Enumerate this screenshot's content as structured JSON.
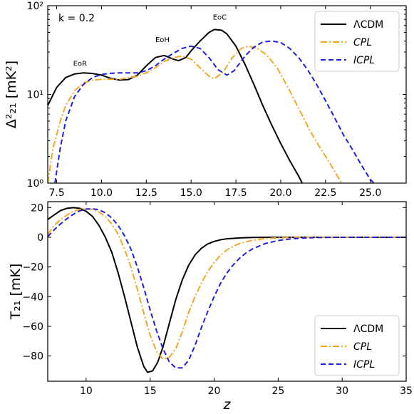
{
  "chart_data": [
    {
      "type": "line",
      "yscale": "log",
      "xlim": [
        7,
        27
      ],
      "ylim": [
        1,
        100
      ],
      "ylabel": "Δ²₂₁ [mK²]",
      "xticks": [
        7.5,
        10.0,
        12.5,
        15.0,
        17.5,
        20.0,
        22.5,
        25.0
      ],
      "xtick_labels": [
        "7.5",
        "10.0",
        "12.5",
        "15.0",
        "17.5",
        "20.0",
        "22.5",
        "25.0"
      ],
      "yticks": [
        1,
        10,
        100
      ],
      "ytick_labels": [
        "10⁰",
        "10¹",
        "10²"
      ],
      "k_label": "k = 0.2",
      "annotations": [
        {
          "text": "EoR",
          "x": 8.8,
          "y": 21
        },
        {
          "text": "EoH",
          "x": 13.4,
          "y": 39
        },
        {
          "text": "EoC",
          "x": 16.6,
          "y": 70
        }
      ],
      "legend": {
        "position": "top-right",
        "entries": [
          "ΛCDM",
          "CPL",
          "ICPL"
        ]
      },
      "series": [
        {
          "name": "ΛCDM",
          "color": "#000000",
          "dash": "solid",
          "points": [
            [
              7.0,
              7.5
            ],
            [
              7.5,
              12
            ],
            [
              8.0,
              15.5
            ],
            [
              8.5,
              17
            ],
            [
              9.0,
              17.5
            ],
            [
              9.5,
              17.2
            ],
            [
              10.0,
              16.5
            ],
            [
              10.5,
              15.2
            ],
            [
              11.0,
              14.5
            ],
            [
              11.5,
              14.7
            ],
            [
              12.0,
              16.5
            ],
            [
              12.5,
              21
            ],
            [
              13.0,
              26
            ],
            [
              13.5,
              27.5
            ],
            [
              14.0,
              25
            ],
            [
              14.3,
              24
            ],
            [
              14.7,
              26
            ],
            [
              15.0,
              31
            ],
            [
              15.5,
              40
            ],
            [
              16.0,
              50
            ],
            [
              16.3,
              54
            ],
            [
              16.7,
              53
            ],
            [
              17.0,
              48
            ],
            [
              17.5,
              35
            ],
            [
              18.0,
              22
            ],
            [
              18.5,
              13
            ],
            [
              19.0,
              7.5
            ],
            [
              19.5,
              4.5
            ],
            [
              20.0,
              2.8
            ],
            [
              20.5,
              1.8
            ],
            [
              21.0,
              1.2
            ],
            [
              21.2,
              1.0
            ]
          ]
        },
        {
          "name": "CPL",
          "color": "#f5a623",
          "dash": "dashdot",
          "points": [
            [
              7.0,
              1.0
            ],
            [
              7.3,
              2.5
            ],
            [
              7.7,
              5
            ],
            [
              8.0,
              7.5
            ],
            [
              8.5,
              11
            ],
            [
              9.0,
              13.5
            ],
            [
              9.5,
              14.5
            ],
            [
              10.0,
              14.8
            ],
            [
              10.5,
              14.8
            ],
            [
              11.0,
              14.8
            ],
            [
              11.5,
              15.5
            ],
            [
              12.0,
              16
            ],
            [
              12.5,
              17.5
            ],
            [
              13.0,
              20
            ],
            [
              13.5,
              23.5
            ],
            [
              14.0,
              26
            ],
            [
              14.5,
              27
            ],
            [
              15.0,
              25
            ],
            [
              15.5,
              20
            ],
            [
              16.0,
              16
            ],
            [
              16.3,
              15
            ],
            [
              16.8,
              18
            ],
            [
              17.3,
              26
            ],
            [
              17.8,
              33
            ],
            [
              18.2,
              35
            ],
            [
              18.7,
              33
            ],
            [
              19.2,
              28
            ],
            [
              19.8,
              20
            ],
            [
              20.4,
              12
            ],
            [
              21.0,
              7
            ],
            [
              21.6,
              4
            ],
            [
              22.2,
              2.5
            ],
            [
              22.8,
              1.6
            ],
            [
              23.4,
              1.0
            ]
          ]
        },
        {
          "name": "ICPL",
          "color": "#1f1fe0",
          "dash": "dashed",
          "points": [
            [
              7.4,
              1.0
            ],
            [
              7.7,
              2.5
            ],
            [
              8.0,
              5
            ],
            [
              8.5,
              9.5
            ],
            [
              9.0,
              13
            ],
            [
              9.5,
              15.5
            ],
            [
              10.0,
              16.8
            ],
            [
              10.5,
              17.3
            ],
            [
              11.0,
              17.5
            ],
            [
              11.5,
              17.5
            ],
            [
              12.0,
              17.5
            ],
            [
              12.5,
              18.5
            ],
            [
              13.0,
              21
            ],
            [
              13.5,
              25
            ],
            [
              14.0,
              29
            ],
            [
              14.5,
              33
            ],
            [
              15.0,
              35
            ],
            [
              15.5,
              33
            ],
            [
              16.0,
              26
            ],
            [
              16.5,
              19
            ],
            [
              17.0,
              16.5
            ],
            [
              17.4,
              18.5
            ],
            [
              18.0,
              27
            ],
            [
              18.5,
              34
            ],
            [
              19.0,
              39
            ],
            [
              19.5,
              40
            ],
            [
              20.0,
              38.5
            ],
            [
              20.5,
              33
            ],
            [
              21.0,
              26
            ],
            [
              21.5,
              19
            ],
            [
              22.0,
              13
            ],
            [
              22.5,
              8.5
            ],
            [
              23.0,
              5.5
            ],
            [
              23.5,
              3.5
            ],
            [
              24.0,
              2.4
            ],
            [
              24.5,
              1.6
            ],
            [
              25.0,
              1.1
            ],
            [
              25.2,
              1.0
            ]
          ]
        }
      ]
    },
    {
      "type": "line",
      "xlim": [
        7,
        35
      ],
      "ylim": [
        -97,
        24
      ],
      "xlabel": "z",
      "ylabel": "T₂₁ [mK]",
      "xticks": [
        10,
        15,
        20,
        25,
        30,
        35
      ],
      "xtick_labels": [
        "10",
        "15",
        "20",
        "25",
        "30",
        "35"
      ],
      "yticks": [
        20,
        0,
        -20,
        -40,
        -60,
        -80
      ],
      "ytick_labels": [
        "20",
        "0",
        "−20",
        "−40",
        "−60",
        "−80"
      ],
      "legend": {
        "position": "lower-right",
        "entries": [
          "ΛCDM",
          "CPL",
          "ICPL"
        ]
      },
      "series": [
        {
          "name": "ΛCDM",
          "color": "#000000",
          "dash": "solid",
          "points": [
            [
              7.0,
              12
            ],
            [
              7.5,
              15
            ],
            [
              8.0,
              18
            ],
            [
              8.5,
              19.5
            ],
            [
              9.0,
              20
            ],
            [
              9.5,
              19.5
            ],
            [
              10.0,
              17.5
            ],
            [
              10.5,
              14
            ],
            [
              11.0,
              8
            ],
            [
              11.5,
              0
            ],
            [
              12.0,
              -10
            ],
            [
              12.5,
              -24
            ],
            [
              13.0,
              -40
            ],
            [
              13.5,
              -57
            ],
            [
              14.0,
              -74
            ],
            [
              14.5,
              -87
            ],
            [
              14.8,
              -91
            ],
            [
              15.2,
              -90
            ],
            [
              15.6,
              -84
            ],
            [
              16.0,
              -74
            ],
            [
              16.5,
              -58
            ],
            [
              17.0,
              -42
            ],
            [
              17.5,
              -29
            ],
            [
              18.0,
              -19
            ],
            [
              18.5,
              -12
            ],
            [
              19.0,
              -7.5
            ],
            [
              19.5,
              -4.5
            ],
            [
              20.0,
              -2.8
            ],
            [
              20.5,
              -1.7
            ],
            [
              21.0,
              -1.0
            ],
            [
              22.0,
              -0.4
            ],
            [
              23.0,
              -0.15
            ],
            [
              25.0,
              0
            ],
            [
              30.0,
              0
            ],
            [
              35.0,
              0
            ]
          ]
        },
        {
          "name": "CPL",
          "color": "#f5a623",
          "dash": "dashdot",
          "points": [
            [
              7.0,
              2
            ],
            [
              7.5,
              8
            ],
            [
              8.0,
              12
            ],
            [
              8.5,
              15
            ],
            [
              9.0,
              17.5
            ],
            [
              9.5,
              18.8
            ],
            [
              10.0,
              19.2
            ],
            [
              10.5,
              18.8
            ],
            [
              11.0,
              17
            ],
            [
              11.5,
              14
            ],
            [
              12.0,
              9
            ],
            [
              12.5,
              2
            ],
            [
              13.0,
              -8
            ],
            [
              13.5,
              -20
            ],
            [
              14.0,
              -35
            ],
            [
              14.5,
              -51
            ],
            [
              15.0,
              -66
            ],
            [
              15.5,
              -77
            ],
            [
              16.0,
              -82
            ],
            [
              16.5,
              -81
            ],
            [
              17.0,
              -75
            ],
            [
              17.5,
              -64
            ],
            [
              18.0,
              -51
            ],
            [
              18.5,
              -40
            ],
            [
              19.0,
              -31
            ],
            [
              19.5,
              -23
            ],
            [
              20.0,
              -17
            ],
            [
              20.5,
              -12
            ],
            [
              21.0,
              -8.5
            ],
            [
              21.5,
              -6
            ],
            [
              22.0,
              -4.2
            ],
            [
              23.0,
              -2
            ],
            [
              24.0,
              -0.9
            ],
            [
              25.0,
              -0.4
            ],
            [
              26.0,
              -0.15
            ],
            [
              28.0,
              0
            ],
            [
              35.0,
              0
            ]
          ]
        },
        {
          "name": "ICPL",
          "color": "#1f1fe0",
          "dash": "dashed",
          "points": [
            [
              7.0,
              0.5
            ],
            [
              7.5,
              5
            ],
            [
              8.0,
              9
            ],
            [
              8.5,
              12.5
            ],
            [
              9.0,
              15.5
            ],
            [
              9.5,
              17.8
            ],
            [
              10.0,
              19
            ],
            [
              10.5,
              19.2
            ],
            [
              11.0,
              18.5
            ],
            [
              11.5,
              16.5
            ],
            [
              12.0,
              13
            ],
            [
              12.5,
              8
            ],
            [
              13.0,
              1
            ],
            [
              13.5,
              -8
            ],
            [
              14.0,
              -20
            ],
            [
              14.5,
              -34
            ],
            [
              15.0,
              -49
            ],
            [
              15.5,
              -63
            ],
            [
              16.0,
              -75
            ],
            [
              16.5,
              -84
            ],
            [
              17.0,
              -88
            ],
            [
              17.5,
              -88
            ],
            [
              18.0,
              -83
            ],
            [
              18.5,
              -73
            ],
            [
              19.0,
              -61
            ],
            [
              19.5,
              -50
            ],
            [
              20.0,
              -40
            ],
            [
              20.5,
              -31
            ],
            [
              21.0,
              -24
            ],
            [
              21.5,
              -18.5
            ],
            [
              22.0,
              -14
            ],
            [
              22.5,
              -10.5
            ],
            [
              23.0,
              -7.8
            ],
            [
              24.0,
              -4.2
            ],
            [
              25.0,
              -2.2
            ],
            [
              26.0,
              -1.1
            ],
            [
              27.0,
              -0.5
            ],
            [
              28.0,
              -0.2
            ],
            [
              30.0,
              0
            ],
            [
              35.0,
              0
            ]
          ]
        }
      ]
    }
  ]
}
